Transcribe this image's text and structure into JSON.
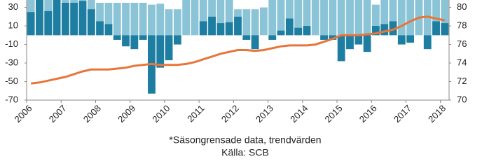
{
  "chart_data": {
    "type": "bar",
    "categories": [
      "2006",
      null,
      null,
      null,
      "2007",
      null,
      null,
      null,
      "2008",
      null,
      null,
      null,
      "2009",
      null,
      null,
      null,
      "2010",
      null,
      null,
      null,
      "2011",
      null,
      null,
      null,
      "2012",
      null,
      null,
      null,
      "2013",
      null,
      null,
      null,
      "2014",
      null,
      null,
      null,
      "2015",
      null,
      null,
      null,
      "2016",
      null,
      null,
      null,
      "2017",
      null,
      null,
      null,
      "2018"
    ],
    "series": [
      {
        "type": "bar",
        "color": "#8ac4d6",
        "values": [
          38,
          38,
          38,
          38,
          38,
          38,
          38,
          38,
          35,
          35,
          35,
          35,
          35,
          35,
          33,
          34,
          28,
          28,
          38,
          38,
          38,
          38,
          38,
          38,
          28,
          28,
          28,
          30,
          38,
          38,
          38,
          38,
          38,
          38,
          38,
          38,
          38,
          38,
          38,
          38,
          33,
          38,
          38,
          38,
          38,
          38,
          38,
          38,
          38
        ]
      },
      {
        "type": "bar",
        "color": "#1e7ea1",
        "values": [
          25,
          38,
          26,
          38,
          35,
          35,
          37,
          28,
          15,
          12,
          -5,
          -12,
          -15,
          -5,
          -63,
          -35,
          -27,
          -10,
          0,
          0,
          15,
          20,
          13,
          14,
          20,
          -5,
          -15,
          0,
          -5,
          5,
          18,
          8,
          10,
          0,
          -5,
          -5,
          -28,
          -15,
          -10,
          -18,
          10,
          12,
          15,
          -10,
          -8,
          0,
          -15,
          15,
          13
        ]
      },
      {
        "type": "line",
        "axis": "y2",
        "color": "#e8753a",
        "values": [
          71.8,
          71.9,
          72.1,
          72.3,
          72.5,
          72.8,
          73.1,
          73.3,
          73.3,
          73.3,
          73.4,
          73.5,
          73.7,
          73.8,
          73.9,
          73.8,
          73.8,
          73.8,
          73.9,
          74.1,
          74.4,
          74.7,
          75.0,
          75.2,
          75.4,
          75.4,
          75.3,
          75.4,
          75.6,
          75.8,
          75.9,
          75.9,
          75.9,
          76.0,
          76.3,
          76.6,
          77.0,
          77.0,
          77.0,
          77.1,
          77.2,
          77.4,
          77.6,
          78.0,
          78.5,
          78.9,
          79.0,
          78.8,
          78.6
        ]
      }
    ],
    "ylim": [
      -70,
      38
    ],
    "yticks": [
      30,
      10,
      -10,
      -30,
      -50,
      -70
    ],
    "y2lim": [
      70,
      80.8
    ],
    "y2ticks": [
      80,
      78,
      76,
      74,
      72,
      70
    ],
    "notes": [
      "*Säsongrensade data, trendvärden",
      "Källa: SCB"
    ]
  }
}
